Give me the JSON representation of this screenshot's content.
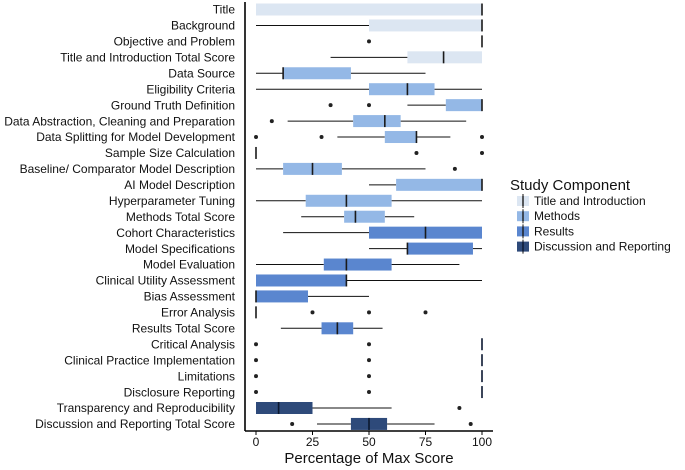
{
  "chart_data": {
    "type": "boxplot",
    "xlabel": "Percentage of Max Score",
    "xlim": [
      -5,
      105
    ],
    "xticks": [
      0,
      25,
      50,
      75,
      100
    ],
    "legend": {
      "title": "Study Component",
      "placement": "right",
      "entries": [
        {
          "name": "Title and Introduction",
          "color": "#dce6f2"
        },
        {
          "name": "Methods",
          "color": "#94b8e6"
        },
        {
          "name": "Results",
          "color": "#5a86cf"
        },
        {
          "name": "Discussion and Reporting",
          "color": "#2e4a7a"
        }
      ]
    },
    "rows": [
      {
        "label": "Title",
        "group": 0,
        "min": 0,
        "q1": 0,
        "median": 100,
        "q3": 100,
        "max": 100,
        "outliers": []
      },
      {
        "label": "Background",
        "group": 0,
        "min": 0,
        "q1": 50,
        "median": 100,
        "q3": 100,
        "max": 100,
        "outliers": []
      },
      {
        "label": "Objective and Problem",
        "group": 0,
        "min": 100,
        "q1": 100,
        "median": 100,
        "q3": 100,
        "max": 100,
        "outliers": [
          50
        ]
      },
      {
        "label": "Title and Introduction Total Score",
        "group": 0,
        "min": 33,
        "q1": 67,
        "median": 83,
        "q3": 100,
        "max": 100,
        "outliers": []
      },
      {
        "label": "Data Source",
        "group": 1,
        "min": 0,
        "q1": 12,
        "median": 12,
        "q3": 42,
        "max": 75,
        "outliers": []
      },
      {
        "label": "Eligibility Criteria",
        "group": 1,
        "min": 0,
        "q1": 50,
        "median": 67,
        "q3": 79,
        "max": 100,
        "outliers": []
      },
      {
        "label": "Ground Truth Definition",
        "group": 1,
        "min": 67,
        "q1": 84,
        "median": 100,
        "q3": 100,
        "max": 100,
        "outliers": [
          33,
          50
        ]
      },
      {
        "label": "Data Abstraction, Cleaning and Preparation",
        "group": 1,
        "min": 14,
        "q1": 43,
        "median": 57,
        "q3": 64,
        "max": 93,
        "outliers": [
          7
        ]
      },
      {
        "label": "Data Splitting for Model Development",
        "group": 1,
        "min": 36,
        "q1": 57,
        "median": 71,
        "q3": 71,
        "max": 86,
        "outliers": [
          0,
          29,
          100
        ]
      },
      {
        "label": "Sample Size Calculation",
        "group": 1,
        "min": 0,
        "q1": 0,
        "median": 0,
        "q3": 0,
        "max": 0,
        "outliers": [
          71,
          100
        ]
      },
      {
        "label": "Baseline/ Comparator Model Description",
        "group": 1,
        "min": 0,
        "q1": 12,
        "median": 25,
        "q3": 38,
        "max": 75,
        "outliers": [
          88
        ]
      },
      {
        "label": "AI Model Description",
        "group": 1,
        "min": 50,
        "q1": 62,
        "median": 100,
        "q3": 100,
        "max": 100,
        "outliers": []
      },
      {
        "label": "Hyperparameter Tuning",
        "group": 1,
        "min": 0,
        "q1": 22,
        "median": 40,
        "q3": 60,
        "max": 100,
        "outliers": []
      },
      {
        "label": "Methods Total Score",
        "group": 1,
        "min": 20,
        "q1": 39,
        "median": 44,
        "q3": 57,
        "max": 70,
        "outliers": []
      },
      {
        "label": "Cohort Characteristics",
        "group": 2,
        "min": 12,
        "q1": 50,
        "median": 75,
        "q3": 100,
        "max": 100,
        "outliers": []
      },
      {
        "label": "Model Specifications",
        "group": 2,
        "min": 50,
        "q1": 67,
        "median": 67,
        "q3": 96,
        "max": 100,
        "outliers": []
      },
      {
        "label": "Model Evaluation",
        "group": 2,
        "min": 0,
        "q1": 30,
        "median": 40,
        "q3": 60,
        "max": 90,
        "outliers": []
      },
      {
        "label": "Clinical Utility Assessment",
        "group": 2,
        "min": 0,
        "q1": 0,
        "median": 40,
        "q3": 40,
        "max": 100,
        "outliers": []
      },
      {
        "label": "Bias Assessment",
        "group": 2,
        "min": 0,
        "q1": 0,
        "median": 0,
        "q3": 23,
        "max": 50,
        "outliers": []
      },
      {
        "label": "Error Analysis",
        "group": 2,
        "min": 0,
        "q1": 0,
        "median": 0,
        "q3": 0,
        "max": 0,
        "outliers": [
          25,
          50,
          75
        ]
      },
      {
        "label": "Results Total Score",
        "group": 2,
        "min": 11,
        "q1": 29,
        "median": 36,
        "q3": 43,
        "max": 56,
        "outliers": []
      },
      {
        "label": "Critical Analysis",
        "group": 3,
        "min": 100,
        "q1": 100,
        "median": 100,
        "q3": 100,
        "max": 100,
        "outliers": [
          0,
          50
        ]
      },
      {
        "label": "Clinical Practice Implementation",
        "group": 3,
        "min": 100,
        "q1": 100,
        "median": 100,
        "q3": 100,
        "max": 100,
        "outliers": [
          0,
          50
        ]
      },
      {
        "label": "Limitations",
        "group": 3,
        "min": 100,
        "q1": 100,
        "median": 100,
        "q3": 100,
        "max": 100,
        "outliers": [
          0,
          50
        ]
      },
      {
        "label": "Disclosure Reporting",
        "group": 3,
        "min": 100,
        "q1": 100,
        "median": 100,
        "q3": 100,
        "max": 100,
        "outliers": [
          0,
          50
        ]
      },
      {
        "label": "Transparency and Reproducibility",
        "group": 3,
        "min": 0,
        "q1": 0,
        "median": 10,
        "q3": 25,
        "max": 60,
        "outliers": [
          90
        ]
      },
      {
        "label": "Discussion and Reporting Total Score",
        "group": 3,
        "min": 27,
        "q1": 42,
        "median": 50,
        "q3": 58,
        "max": 79,
        "outliers": [
          16,
          95
        ]
      }
    ]
  }
}
